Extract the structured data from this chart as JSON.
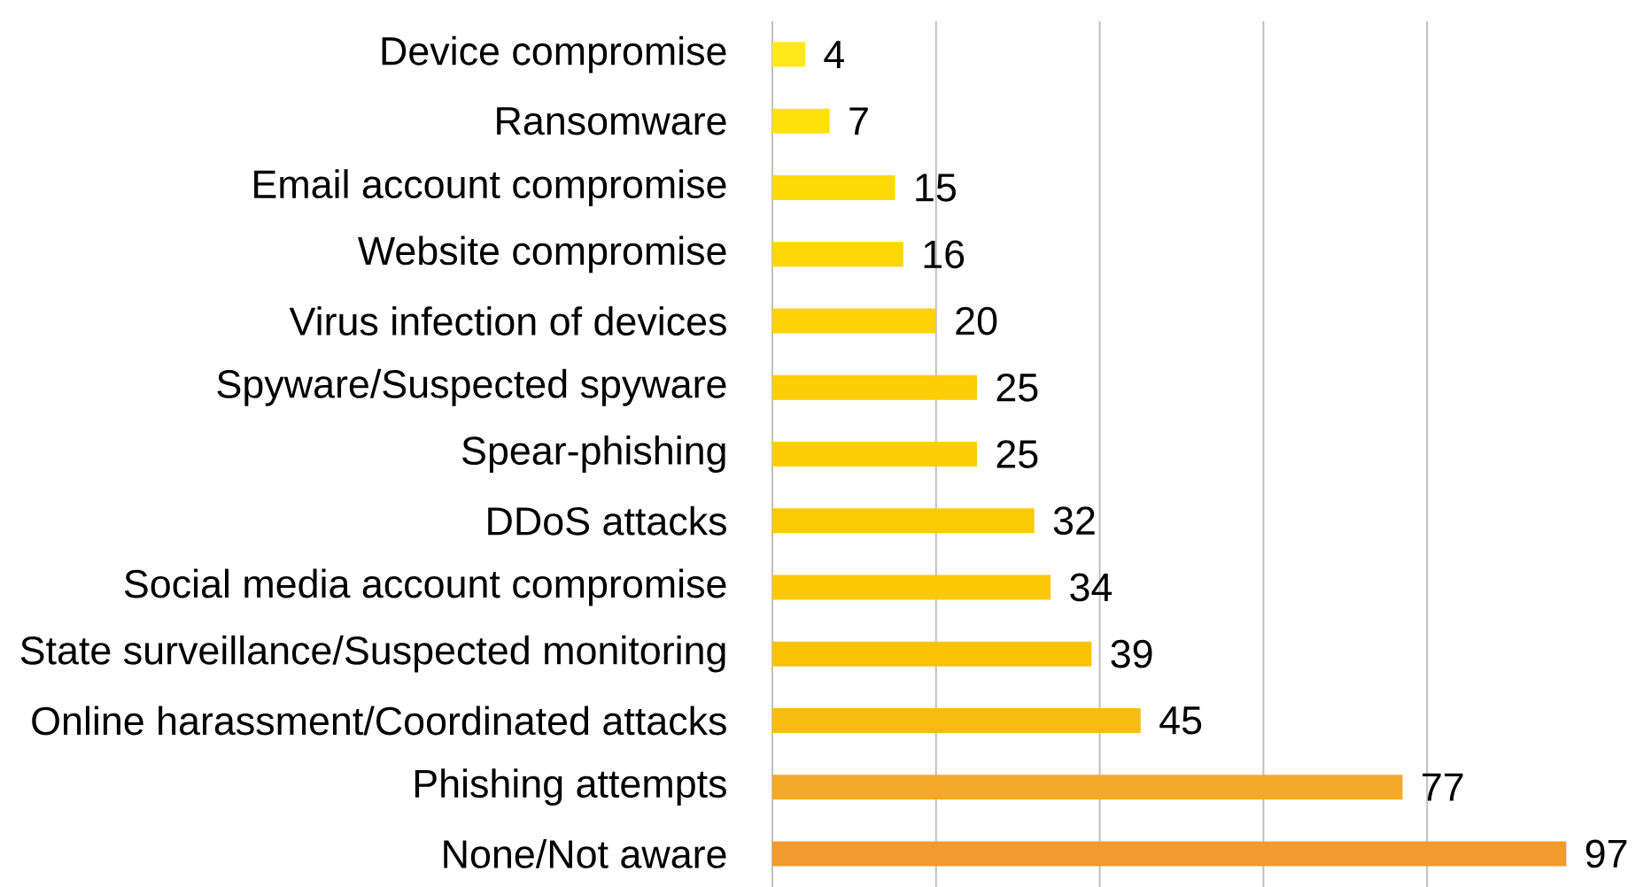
{
  "chart_data": {
    "type": "bar",
    "orientation": "horizontal",
    "categories": [
      "Device compromise",
      "Ransomware",
      "Email account compromise",
      "Website compromise",
      "Virus infection of devices",
      "Spyware/Suspected spyware",
      "Spear-phishing",
      "DDoS attacks",
      "Social media account compromise",
      "State surveillance/Suspected monitoring",
      "Online harassment/Coordinated attacks",
      "Phishing attempts",
      "None/Not aware"
    ],
    "values": [
      4,
      7,
      15,
      16,
      20,
      25,
      25,
      32,
      34,
      39,
      45,
      77,
      97
    ],
    "colors": [
      "#ffe81a",
      "#fee10d",
      "#fdd907",
      "#fdd706",
      "#fcd204",
      "#fcce03",
      "#fcce03",
      "#fbca03",
      "#fbc803",
      "#f9c204",
      "#f8bc10",
      "#f4a928",
      "#f09a30"
    ],
    "xticks": [
      {
        "value": 0,
        "label": null
      },
      {
        "value": 20,
        "label": null
      },
      {
        "value": 40,
        "label": null
      },
      {
        "value": 60,
        "label": null
      },
      {
        "value": 80,
        "label": null
      }
    ],
    "grid": "x",
    "tick_labels": "y",
    "data_labels": true
  }
}
